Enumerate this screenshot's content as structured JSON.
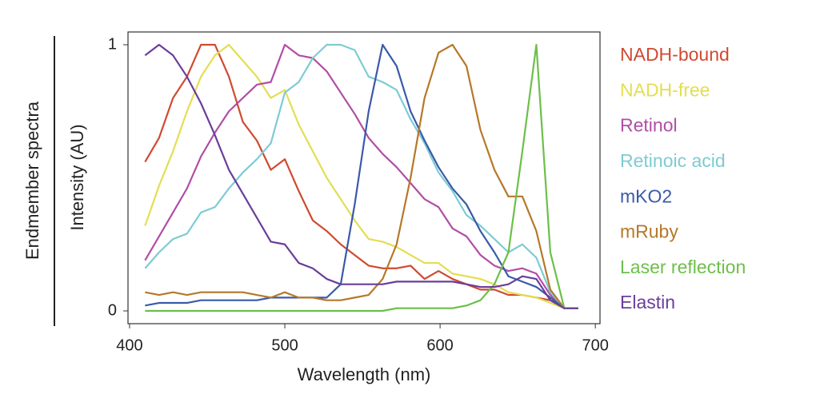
{
  "chart_data": {
    "type": "line",
    "side_label": "Endmember spectra",
    "x_label": "Wavelength (nm)",
    "y_label": "Intensity (AU)",
    "xlim": [
      399,
      703
    ],
    "ylim": [
      -0.048,
      1.048
    ],
    "xticks": [
      400,
      500,
      600,
      700
    ],
    "yticks": [
      0,
      1
    ],
    "legend": "right",
    "x": [
      410,
      419,
      428,
      437,
      446,
      455,
      464,
      473,
      482,
      491,
      500,
      509,
      518,
      527,
      536,
      545,
      554,
      563,
      572,
      581,
      590,
      599,
      608,
      617,
      626,
      635,
      644,
      653,
      662,
      671,
      680,
      689
    ],
    "series": [
      {
        "name": "NADH-bound",
        "color": "#d04a30",
        "values": [
          0.56,
          0.65,
          0.8,
          0.88,
          1.0,
          1.0,
          0.88,
          0.71,
          0.64,
          0.53,
          0.57,
          0.45,
          0.34,
          0.3,
          0.25,
          0.21,
          0.17,
          0.16,
          0.16,
          0.17,
          0.12,
          0.15,
          0.12,
          0.1,
          0.08,
          0.08,
          0.06,
          0.06,
          0.05,
          0.04,
          0.01,
          0.01
        ]
      },
      {
        "name": "NADH-free",
        "color": "#e3de52",
        "values": [
          0.32,
          0.47,
          0.6,
          0.75,
          0.88,
          0.96,
          1.0,
          0.94,
          0.88,
          0.8,
          0.83,
          0.7,
          0.6,
          0.5,
          0.42,
          0.34,
          0.27,
          0.26,
          0.24,
          0.21,
          0.18,
          0.18,
          0.14,
          0.13,
          0.12,
          0.1,
          0.07,
          0.06,
          0.05,
          0.03,
          0.01,
          0.01
        ]
      },
      {
        "name": "Retinol",
        "color": "#b04ea6",
        "values": [
          0.19,
          0.28,
          0.37,
          0.46,
          0.58,
          0.67,
          0.75,
          0.8,
          0.85,
          0.86,
          1.0,
          0.96,
          0.95,
          0.9,
          0.82,
          0.74,
          0.65,
          0.59,
          0.54,
          0.48,
          0.42,
          0.39,
          0.31,
          0.28,
          0.21,
          0.17,
          0.15,
          0.16,
          0.14,
          0.06,
          0.01,
          0.01
        ]
      },
      {
        "name": "Retinoic acid",
        "color": "#7ecbd4",
        "values": [
          0.16,
          0.22,
          0.27,
          0.29,
          0.37,
          0.39,
          0.46,
          0.52,
          0.57,
          0.63,
          0.82,
          0.86,
          0.95,
          1.0,
          1.0,
          0.98,
          0.88,
          0.86,
          0.83,
          0.72,
          0.63,
          0.52,
          0.45,
          0.36,
          0.32,
          0.27,
          0.22,
          0.25,
          0.2,
          0.07,
          0.01,
          0.01
        ]
      },
      {
        "name": "mKO2",
        "color": "#3a5aa8",
        "values": [
          0.02,
          0.03,
          0.03,
          0.03,
          0.04,
          0.04,
          0.04,
          0.04,
          0.04,
          0.05,
          0.05,
          0.05,
          0.05,
          0.05,
          0.1,
          0.4,
          0.75,
          1.0,
          0.92,
          0.75,
          0.64,
          0.54,
          0.46,
          0.4,
          0.3,
          0.22,
          0.13,
          0.11,
          0.09,
          0.05,
          0.01,
          0.01
        ]
      },
      {
        "name": "mRuby",
        "color": "#b5782a",
        "values": [
          0.07,
          0.06,
          0.07,
          0.06,
          0.07,
          0.07,
          0.07,
          0.07,
          0.06,
          0.05,
          0.07,
          0.05,
          0.05,
          0.04,
          0.04,
          0.05,
          0.06,
          0.12,
          0.25,
          0.5,
          0.8,
          0.97,
          1.0,
          0.92,
          0.68,
          0.53,
          0.43,
          0.43,
          0.3,
          0.08,
          0.01,
          0.01
        ]
      },
      {
        "name": "Laser reflection",
        "color": "#6cbf4a",
        "values": [
          0.0,
          0.0,
          0.0,
          0.0,
          0.0,
          0.0,
          0.0,
          0.0,
          0.0,
          0.0,
          0.0,
          0.0,
          0.0,
          0.0,
          0.0,
          0.0,
          0.0,
          0.0,
          0.01,
          0.01,
          0.01,
          0.01,
          0.01,
          0.02,
          0.04,
          0.1,
          0.22,
          0.6,
          1.0,
          0.22,
          0.01,
          0.01
        ]
      },
      {
        "name": "Elastin",
        "color": "#6a3d9a",
        "values": [
          0.96,
          1.0,
          0.96,
          0.88,
          0.78,
          0.66,
          0.53,
          0.44,
          0.35,
          0.26,
          0.25,
          0.18,
          0.16,
          0.12,
          0.1,
          0.1,
          0.1,
          0.1,
          0.11,
          0.11,
          0.11,
          0.11,
          0.11,
          0.1,
          0.09,
          0.09,
          0.1,
          0.13,
          0.12,
          0.04,
          0.01,
          0.01
        ]
      }
    ]
  }
}
